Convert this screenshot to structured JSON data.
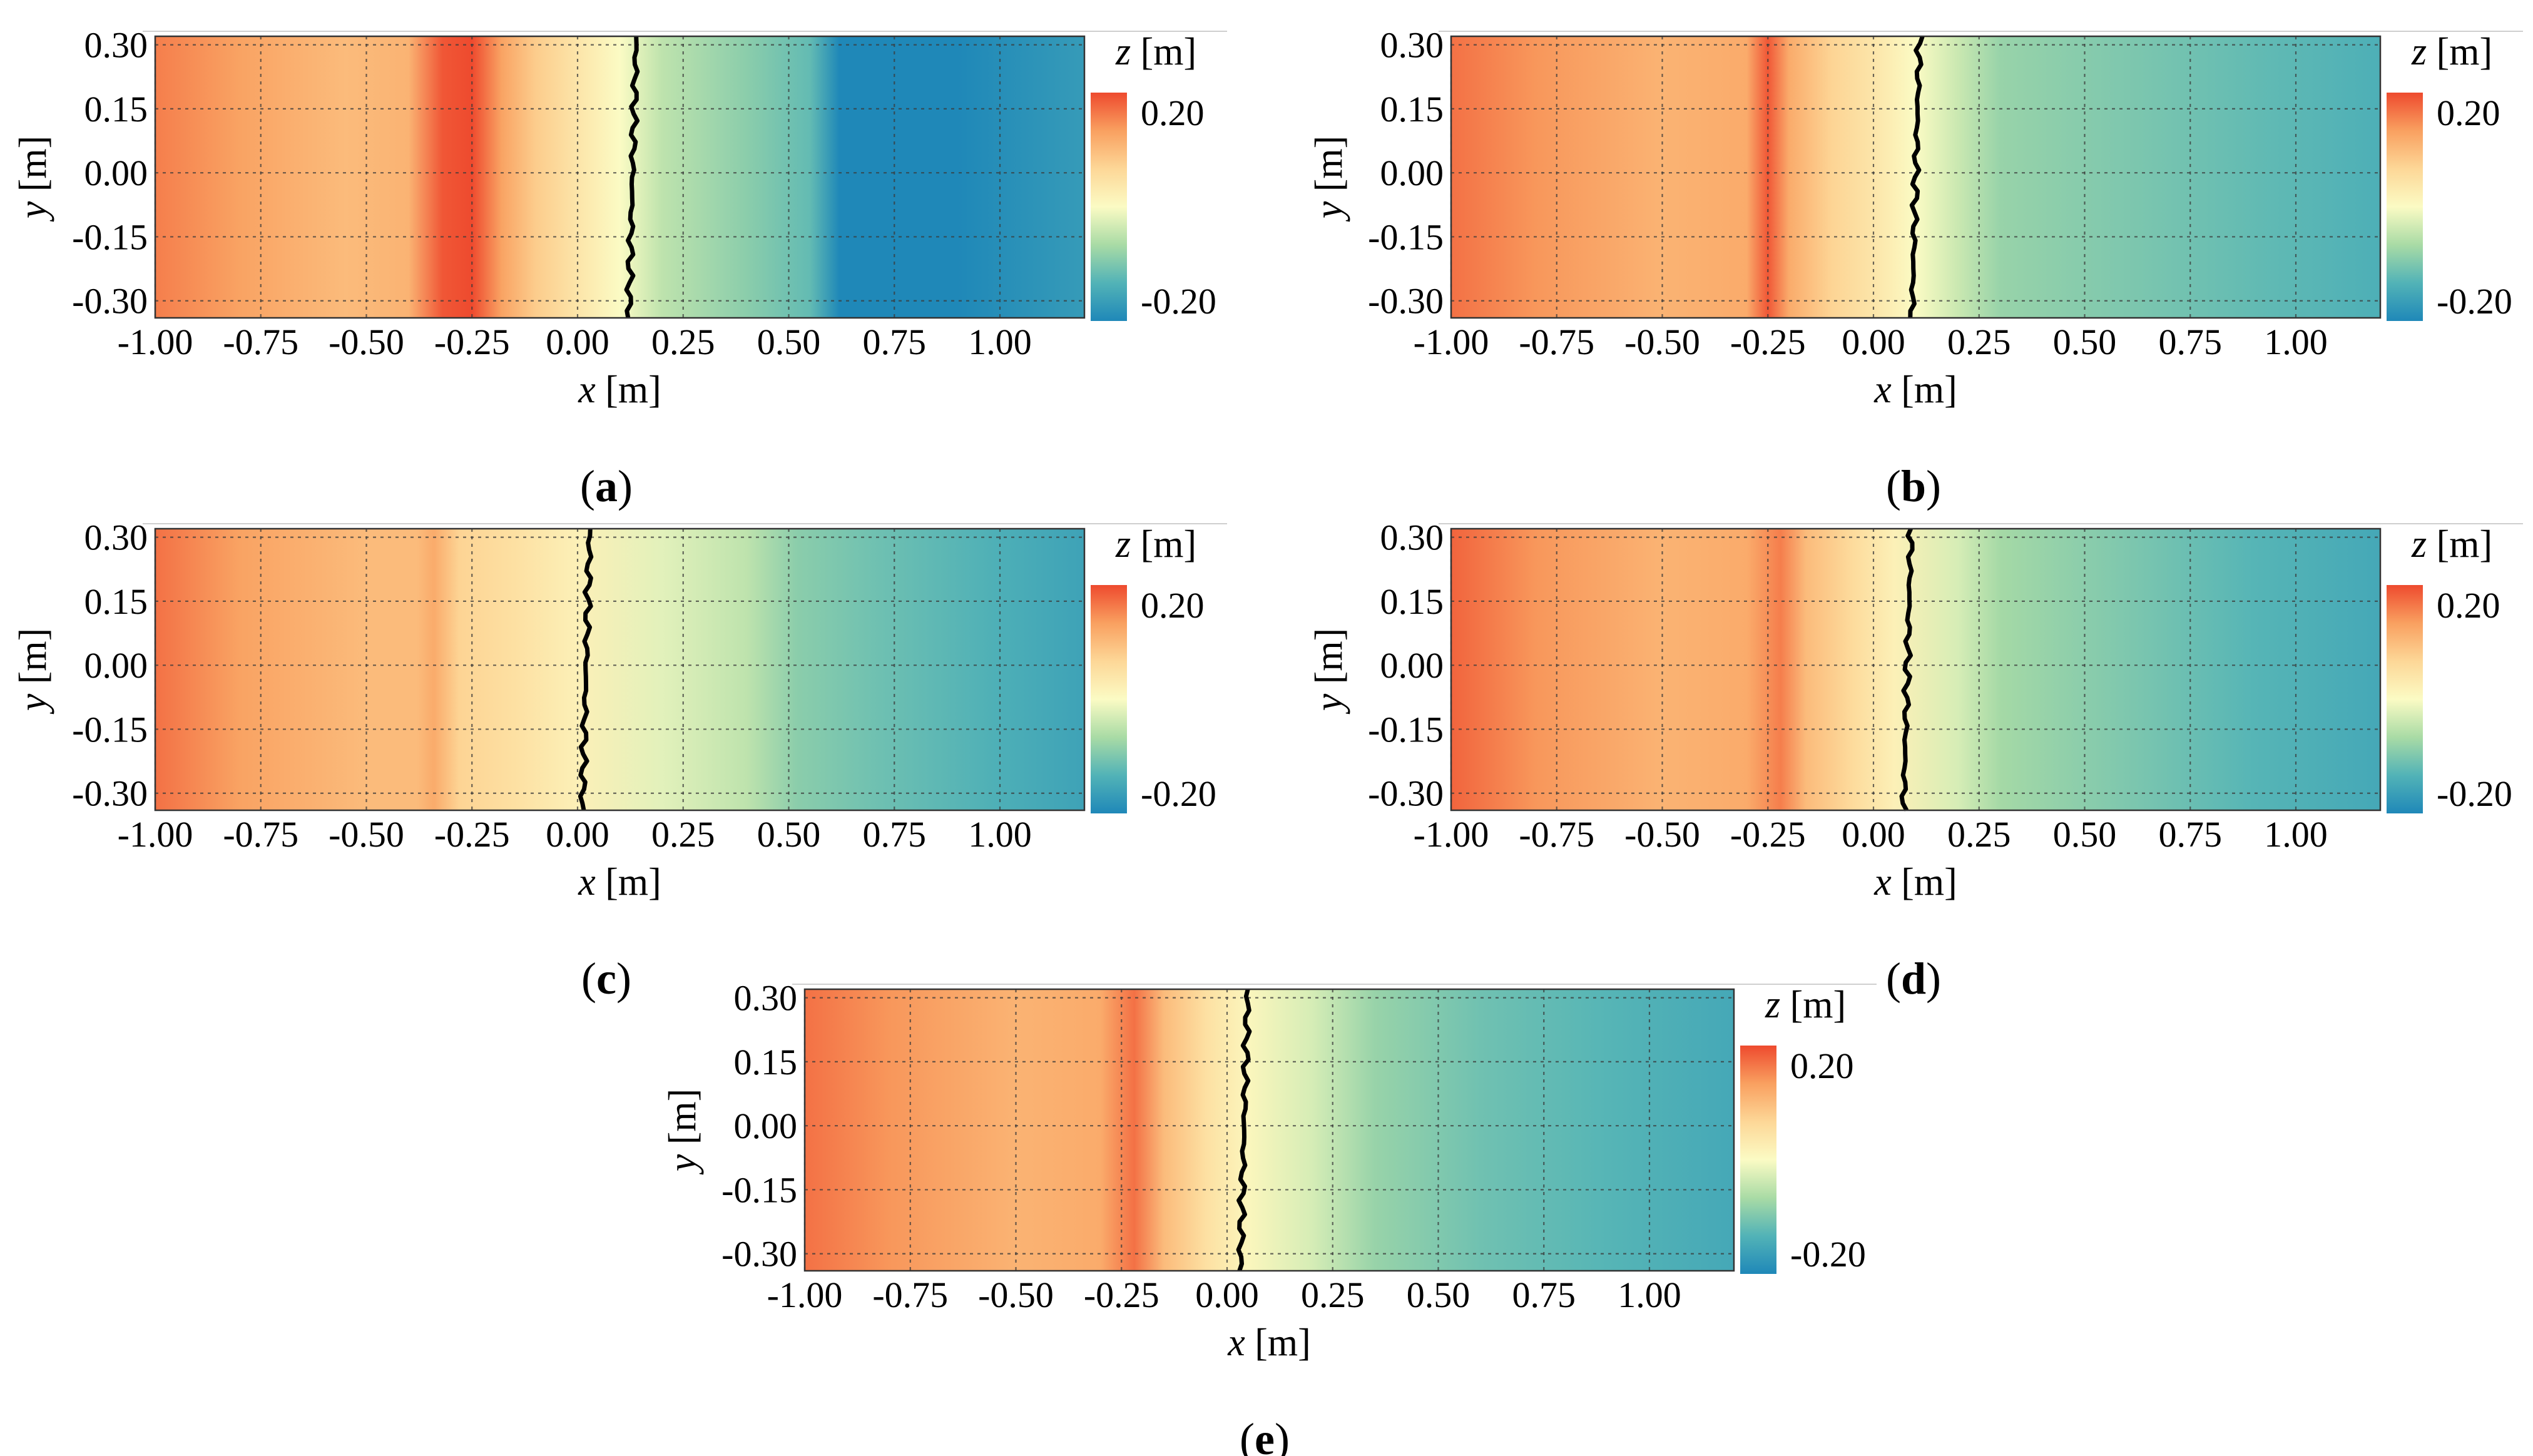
{
  "chart_data": [
    {
      "type": "heatmap",
      "panel": "a",
      "caption_letter": "a",
      "xlabel_var": "x",
      "xlabel_unit": " [m]",
      "ylabel_var": "y",
      "ylabel_unit": " [m]",
      "colorbar_var": "z",
      "colorbar_unit": " [m]",
      "xlim": [
        -1.0,
        1.2
      ],
      "ylim": [
        -0.34,
        0.32
      ],
      "x_ticks": [
        -1.0,
        -0.75,
        -0.5,
        -0.25,
        0.0,
        0.25,
        0.5,
        0.75,
        1.0
      ],
      "x_tick_labels": [
        "-1.00",
        "-0.75",
        "-0.50",
        "-0.25",
        "0.00",
        "0.25",
        "0.50",
        "0.75",
        "1.00"
      ],
      "y_ticks": [
        0.3,
        0.15,
        0.0,
        -0.15,
        -0.3
      ],
      "y_tick_labels": [
        "0.30",
        "0.15",
        "0.00",
        "-0.15",
        "-0.30"
      ],
      "colorbar_range": [
        -0.2,
        0.2
      ],
      "colorbar_tick_labels": [
        "0.20",
        "-0.20"
      ],
      "colormap": [
        "#1f88b8",
        "#52b3b7",
        "#a9dba5",
        "#fbfbc4",
        "#fdd797",
        "#f9a060",
        "#ee4a2e"
      ],
      "shoreline_x": 0.13,
      "elevation_profile": {
        "x": [
          -1.0,
          -0.8,
          -0.55,
          -0.4,
          -0.32,
          -0.25,
          -0.18,
          -0.1,
          0.0,
          0.1,
          0.2,
          0.4,
          0.55,
          0.62,
          0.9,
          1.2
        ],
        "z": [
          0.16,
          0.13,
          0.1,
          0.11,
          0.19,
          0.21,
          0.13,
          0.08,
          0.04,
          0.0,
          -0.05,
          -0.09,
          -0.12,
          -0.2,
          -0.2,
          -0.17
        ]
      }
    },
    {
      "type": "heatmap",
      "panel": "b",
      "caption_letter": "b",
      "xlabel_var": "x",
      "xlabel_unit": " [m]",
      "ylabel_var": "y",
      "ylabel_unit": " [m]",
      "colorbar_var": "z",
      "colorbar_unit": " [m]",
      "xlim": [
        -1.0,
        1.2
      ],
      "ylim": [
        -0.34,
        0.32
      ],
      "x_ticks": [
        -1.0,
        -0.75,
        -0.5,
        -0.25,
        0.0,
        0.25,
        0.5,
        0.75,
        1.0
      ],
      "x_tick_labels": [
        "-1.00",
        "-0.75",
        "-0.50",
        "-0.25",
        "0.00",
        "0.25",
        "0.50",
        "0.75",
        "1.00"
      ],
      "y_ticks": [
        0.3,
        0.15,
        0.0,
        -0.15,
        -0.3
      ],
      "y_tick_labels": [
        "0.30",
        "0.15",
        "0.00",
        "-0.15",
        "-0.30"
      ],
      "colorbar_range": [
        -0.2,
        0.2
      ],
      "colorbar_tick_labels": [
        "0.20",
        "-0.20"
      ],
      "colormap": [
        "#1f88b8",
        "#52b3b7",
        "#a9dba5",
        "#fbfbc4",
        "#fdd797",
        "#f9a060",
        "#ee4a2e"
      ],
      "shoreline_x": 0.1,
      "elevation_profile": {
        "x": [
          -1.0,
          -0.8,
          -0.5,
          -0.3,
          -0.25,
          -0.2,
          -0.1,
          0.0,
          0.1,
          0.2,
          0.3,
          0.6,
          0.9,
          1.2
        ],
        "z": [
          0.17,
          0.14,
          0.11,
          0.12,
          0.19,
          0.12,
          0.07,
          0.04,
          0.0,
          -0.04,
          -0.08,
          -0.1,
          -0.12,
          -0.14
        ]
      }
    },
    {
      "type": "heatmap",
      "panel": "c",
      "caption_letter": "c",
      "xlabel_var": "x",
      "xlabel_unit": " [m]",
      "ylabel_var": "y",
      "ylabel_unit": " [m]",
      "colorbar_var": "z",
      "colorbar_unit": " [m]",
      "xlim": [
        -1.0,
        1.2
      ],
      "ylim": [
        -0.34,
        0.32
      ],
      "x_ticks": [
        -1.0,
        -0.75,
        -0.5,
        -0.25,
        0.0,
        0.25,
        0.5,
        0.75,
        1.0
      ],
      "x_tick_labels": [
        "-1.00",
        "-0.75",
        "-0.50",
        "-0.25",
        "0.00",
        "0.25",
        "0.50",
        "0.75",
        "1.00"
      ],
      "y_ticks": [
        0.3,
        0.15,
        0.0,
        -0.15,
        -0.3
      ],
      "y_tick_labels": [
        "0.30",
        "0.15",
        "0.00",
        "-0.15",
        "-0.30"
      ],
      "colorbar_range": [
        -0.2,
        0.2
      ],
      "colorbar_tick_labels": [
        "0.20",
        "-0.20"
      ],
      "colormap": [
        "#1f88b8",
        "#52b3b7",
        "#a9dba5",
        "#fbfbc4",
        "#fdd797",
        "#f9a060",
        "#ee4a2e"
      ],
      "shoreline_x": 0.02,
      "elevation_profile": {
        "x": [
          -1.0,
          -0.8,
          -0.5,
          -0.38,
          -0.34,
          -0.28,
          -0.15,
          0.0,
          0.2,
          0.4,
          0.52,
          0.7,
          1.0,
          1.2
        ],
        "z": [
          0.17,
          0.13,
          0.1,
          0.1,
          0.12,
          0.07,
          0.05,
          0.02,
          -0.02,
          -0.05,
          -0.09,
          -0.11,
          -0.14,
          -0.16
        ]
      }
    },
    {
      "type": "heatmap",
      "panel": "d",
      "caption_letter": "d",
      "xlabel_var": "x",
      "xlabel_unit": " [m]",
      "ylabel_var": "y",
      "ylabel_unit": " [m]",
      "colorbar_var": "z",
      "colorbar_unit": " [m]",
      "xlim": [
        -1.0,
        1.2
      ],
      "ylim": [
        -0.34,
        0.32
      ],
      "x_ticks": [
        -1.0,
        -0.75,
        -0.5,
        -0.25,
        0.0,
        0.25,
        0.5,
        0.75,
        1.0
      ],
      "x_tick_labels": [
        "-1.00",
        "-0.75",
        "-0.50",
        "-0.25",
        "0.00",
        "0.25",
        "0.50",
        "0.75",
        "1.00"
      ],
      "y_ticks": [
        0.3,
        0.15,
        0.0,
        -0.15,
        -0.3
      ],
      "y_tick_labels": [
        "0.30",
        "0.15",
        "0.00",
        "-0.15",
        "-0.30"
      ],
      "colorbar_range": [
        -0.2,
        0.2
      ],
      "colorbar_tick_labels": [
        "0.20",
        "-0.20"
      ],
      "colormap": [
        "#1f88b8",
        "#52b3b7",
        "#a9dba5",
        "#fbfbc4",
        "#fdd797",
        "#f9a060",
        "#ee4a2e"
      ],
      "shoreline_x": 0.08,
      "elevation_profile": {
        "x": [
          -1.0,
          -0.8,
          -0.5,
          -0.3,
          -0.22,
          -0.16,
          -0.05,
          0.05,
          0.2,
          0.3,
          0.6,
          0.9,
          1.2
        ],
        "z": [
          0.18,
          0.14,
          0.11,
          0.12,
          0.16,
          0.1,
          0.06,
          0.02,
          -0.03,
          -0.07,
          -0.1,
          -0.13,
          -0.15
        ]
      }
    },
    {
      "type": "heatmap",
      "panel": "e",
      "caption_letter": "e",
      "xlabel_var": "x",
      "xlabel_unit": " [m]",
      "ylabel_var": "y",
      "ylabel_unit": " [m]",
      "colorbar_var": "z",
      "colorbar_unit": " [m]",
      "xlim": [
        -1.0,
        1.2
      ],
      "ylim": [
        -0.34,
        0.32
      ],
      "x_ticks": [
        -1.0,
        -0.75,
        -0.5,
        -0.25,
        0.0,
        0.25,
        0.5,
        0.75,
        1.0
      ],
      "x_tick_labels": [
        "-1.00",
        "-0.75",
        "-0.50",
        "-0.25",
        "0.00",
        "0.25",
        "0.50",
        "0.75",
        "1.00"
      ],
      "y_ticks": [
        0.3,
        0.15,
        0.0,
        -0.15,
        -0.3
      ],
      "y_tick_labels": [
        "0.30",
        "0.15",
        "0.00",
        "-0.15",
        "-0.30"
      ],
      "colorbar_range": [
        -0.2,
        0.2
      ],
      "colorbar_tick_labels": [
        "0.20",
        "-0.20"
      ],
      "colormap": [
        "#1f88b8",
        "#52b3b7",
        "#a9dba5",
        "#fbfbc4",
        "#fdd797",
        "#f9a060",
        "#ee4a2e"
      ],
      "shoreline_x": 0.04,
      "elevation_profile": {
        "x": [
          -1.0,
          -0.8,
          -0.5,
          -0.3,
          -0.22,
          -0.15,
          -0.05,
          0.05,
          0.2,
          0.35,
          0.6,
          0.9,
          1.2
        ],
        "z": [
          0.17,
          0.14,
          0.11,
          0.12,
          0.17,
          0.1,
          0.05,
          0.01,
          -0.03,
          -0.08,
          -0.11,
          -0.13,
          -0.15
        ]
      }
    }
  ]
}
